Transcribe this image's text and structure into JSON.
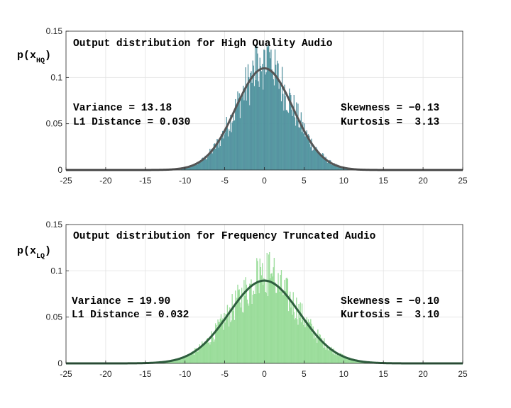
{
  "chart_data": [
    {
      "type": "bar",
      "title": "Output distribution for High Quality Audio",
      "ylabel_main": "p(x",
      "ylabel_sub": "HQ",
      "ylabel_close": ")",
      "xlim": [
        -25,
        25
      ],
      "ylim": [
        0,
        0.15
      ],
      "xticks": [
        -25,
        -20,
        -15,
        -10,
        -5,
        0,
        5,
        10,
        15,
        20,
        25
      ],
      "yticks": [
        0,
        0.05,
        0.1,
        0.15
      ],
      "ytick_labels": [
        "0",
        "0.05",
        "0.1",
        "0.15"
      ],
      "grid": true,
      "stats_left": [
        "Variance = 13.18",
        "L1 Distance = 0.030"
      ],
      "stats_right": [
        "Skewness = −0.13",
        "Kurtosis =  3.13"
      ],
      "fit": {
        "kind": "normal",
        "mean": 0,
        "variance": 13.18
      },
      "histogram": {
        "x_range": [
          -10.5,
          10.5
        ],
        "bin_width": 0.1,
        "peak_near_zero": 0.138
      },
      "colors": {
        "bar_fill": "#5aa6a6",
        "bar_edge": "#3f6f8f",
        "curve": "#555555"
      }
    },
    {
      "type": "bar",
      "title": "Output distribution for Frequency Truncated Audio",
      "ylabel_main": "p(x",
      "ylabel_sub": "LQ",
      "ylabel_close": ")",
      "xlim": [
        -25,
        25
      ],
      "ylim": [
        0,
        0.15
      ],
      "xticks": [
        -25,
        -20,
        -15,
        -10,
        -5,
        0,
        5,
        10,
        15,
        20,
        25
      ],
      "yticks": [
        0,
        0.05,
        0.1,
        0.15
      ],
      "ytick_labels": [
        "0",
        "0.05",
        "0.1",
        "0.15"
      ],
      "grid": true,
      "stats_left": [
        "Variance = 19.90",
        "L1 Distance = 0.032"
      ],
      "stats_right": [
        "Skewness = −0.10",
        "Kurtosis =  3.10"
      ],
      "fit": {
        "kind": "normal",
        "mean": 0,
        "variance": 19.9
      },
      "histogram": {
        "x_range": [
          -14,
          14
        ],
        "bin_width": 0.1,
        "peak_near_zero": 0.121
      },
      "colors": {
        "bar_fill": "#a6e2a6",
        "bar_edge": "#7fcf7f",
        "curve": "#2e5e3e"
      }
    }
  ]
}
